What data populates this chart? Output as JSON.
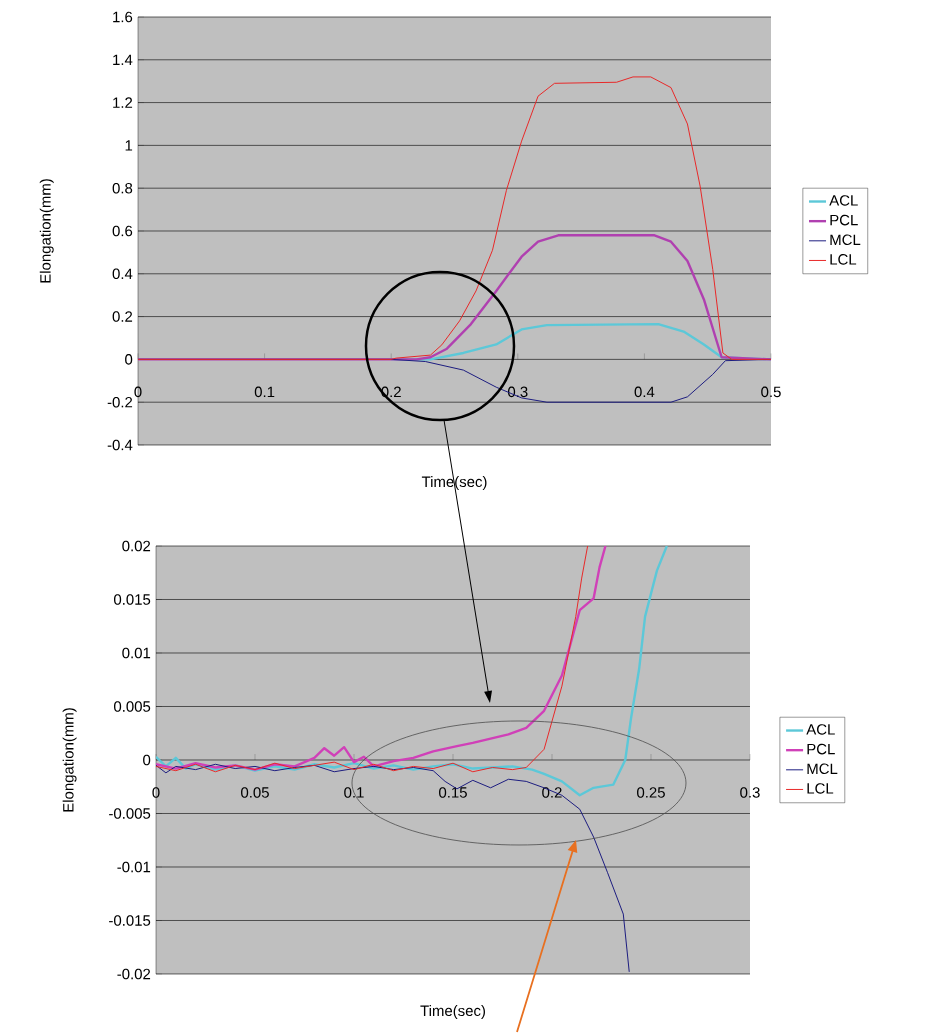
{
  "chart_data": [
    {
      "type": "line",
      "xlabel": "Time(sec)",
      "ylabel": "Elongation(mm)",
      "xlim": [
        0,
        0.5
      ],
      "ylim": [
        -0.4,
        1.6
      ],
      "xticks": [
        0,
        0.1,
        0.2,
        0.3,
        0.4,
        0.5
      ],
      "yticks": [
        -0.4,
        -0.2,
        0,
        0.2,
        0.4,
        0.6,
        0.8,
        1,
        1.2,
        1.4,
        1.6
      ],
      "grid": "y",
      "legend": "right",
      "marker": "none",
      "line_style": "solid",
      "series": [
        {
          "name": "ACL",
          "color": "#5cc8d8",
          "x": [
            0.2,
            0.231,
            0.257,
            0.283,
            0.303,
            0.323,
            0.411,
            0.431,
            0.447,
            0.461,
            0.5
          ],
          "values": [
            0,
            0,
            0.03,
            0.07,
            0.14,
            0.16,
            0.165,
            0.13,
            0.07,
            0.01,
            0
          ]
        },
        {
          "name": "PCL",
          "color": "#b040b0",
          "x": [
            0,
            0.1,
            0.2,
            0.22,
            0.231,
            0.244,
            0.263,
            0.283,
            0.303,
            0.316,
            0.332,
            0.408,
            0.421,
            0.434,
            0.447,
            0.461,
            0.5
          ],
          "values": [
            0,
            0,
            0,
            0,
            0.01,
            0.05,
            0.165,
            0.32,
            0.48,
            0.55,
            0.58,
            0.58,
            0.55,
            0.46,
            0.28,
            0.01,
            0
          ]
        },
        {
          "name": "MCL",
          "color": "#1c1c80",
          "x": [
            0,
            0.1,
            0.2,
            0.227,
            0.257,
            0.283,
            0.303,
            0.323,
            0.421,
            0.434,
            0.454,
            0.464,
            0.5
          ],
          "values": [
            0,
            0,
            0,
            -0.01,
            -0.05,
            -0.13,
            -0.18,
            -0.2,
            -0.2,
            -0.175,
            -0.07,
            -0.006,
            0
          ]
        },
        {
          "name": "LCL",
          "color": "#e82828",
          "x": [
            0,
            0.05,
            0.1,
            0.15,
            0.2,
            0.204,
            0.231,
            0.24,
            0.254,
            0.267,
            0.28,
            0.291,
            0.303,
            0.316,
            0.329,
            0.378,
            0.391,
            0.405,
            0.421,
            0.434,
            0.444,
            0.454,
            0.462,
            0.469,
            0.5
          ],
          "values": [
            0,
            0,
            0,
            0,
            0,
            0.006,
            0.02,
            0.068,
            0.18,
            0.32,
            0.51,
            0.79,
            1.02,
            1.23,
            1.29,
            1.295,
            1.32,
            1.32,
            1.27,
            1.1,
            0.81,
            0.42,
            0.03,
            0,
            0
          ]
        }
      ]
    },
    {
      "type": "line",
      "xlabel": "Time(sec)",
      "ylabel": "Elongation(mm)",
      "xlim": [
        0,
        0.3
      ],
      "ylim": [
        -0.02,
        0.02
      ],
      "xticks": [
        0,
        0.05,
        0.1,
        0.15,
        0.2,
        0.25,
        0.3
      ],
      "yticks": [
        -0.02,
        -0.015,
        -0.01,
        -0.005,
        0,
        0.005,
        0.01,
        0.015,
        0.02
      ],
      "grid": "y",
      "legend": "right",
      "marker": "none",
      "line_style": "solid",
      "series": [
        {
          "name": "ACL",
          "color": "#5cc8d8",
          "x": [
            0,
            0.005,
            0.01,
            0.015,
            0.02,
            0.03,
            0.04,
            0.05,
            0.06,
            0.07,
            0.08,
            0.09,
            0.1,
            0.11,
            0.12,
            0.13,
            0.14,
            0.15,
            0.16,
            0.17,
            0.18,
            0.19,
            0.196,
            0.205,
            0.214,
            0.221,
            0.231,
            0.237,
            0.24,
            0.244,
            0.247,
            0.253,
            0.258
          ],
          "values": [
            0.0003,
            -0.0006,
            0.0002,
            -0.0008,
            -0.0004,
            -0.0009,
            -0.0005,
            -0.001,
            -0.0006,
            -0.0009,
            -0.0004,
            -0.0007,
            -0.0003,
            -0.0008,
            -0.0005,
            -0.0009,
            -0.0006,
            -0.0004,
            -0.0008,
            -0.0007,
            -0.0006,
            -0.0009,
            -0.0013,
            -0.002,
            -0.0033,
            -0.0026,
            -0.0023,
            0,
            0.004,
            0.0085,
            0.0134,
            0.0177,
            0.02
          ]
        },
        {
          "name": "PCL",
          "color": "#d040b8",
          "x": [
            0,
            0.01,
            0.02,
            0.03,
            0.04,
            0.05,
            0.06,
            0.07,
            0.08,
            0.085,
            0.09,
            0.095,
            0.1,
            0.105,
            0.11,
            0.12,
            0.13,
            0.14,
            0.152,
            0.16,
            0.169,
            0.178,
            0.187,
            0.196,
            0.205,
            0.214,
            0.221,
            0.224,
            0.227
          ],
          "values": [
            -0.0004,
            -0.0008,
            -0.0003,
            -0.0007,
            -0.0005,
            -0.0009,
            -0.0004,
            -0.0006,
            0.0002,
            0.0011,
            0.0004,
            0.0012,
            -0.0002,
            0.0003,
            -0.0006,
            -0.0001,
            0.0002,
            0.0008,
            0.0013,
            0.0016,
            0.002,
            0.0024,
            0.003,
            0.0046,
            0.0079,
            0.014,
            0.0151,
            0.018,
            0.02
          ]
        },
        {
          "name": "MCL",
          "color": "#1c1c80",
          "x": [
            0,
            0.005,
            0.01,
            0.02,
            0.03,
            0.04,
            0.05,
            0.06,
            0.07,
            0.08,
            0.09,
            0.1,
            0.11,
            0.12,
            0.13,
            0.14,
            0.146,
            0.152,
            0.16,
            0.169,
            0.178,
            0.187,
            0.196,
            0.205,
            0.214,
            0.221,
            0.228,
            0.236,
            0.239
          ],
          "values": [
            -0.0005,
            -0.0012,
            -0.0006,
            -0.0009,
            -0.0004,
            -0.0008,
            -0.0006,
            -0.001,
            -0.0007,
            -0.0005,
            -0.0011,
            -0.0008,
            -0.0006,
            -0.0009,
            -0.0007,
            -0.001,
            -0.002,
            -0.0027,
            -0.0019,
            -0.0026,
            -0.0018,
            -0.002,
            -0.0026,
            -0.0033,
            -0.0046,
            -0.0072,
            -0.0105,
            -0.0144,
            -0.0198
          ]
        },
        {
          "name": "LCL",
          "color": "#e82828",
          "x": [
            0,
            0.01,
            0.02,
            0.03,
            0.04,
            0.05,
            0.06,
            0.07,
            0.08,
            0.09,
            0.1,
            0.11,
            0.12,
            0.13,
            0.14,
            0.15,
            0.16,
            0.17,
            0.18,
            0.187,
            0.196,
            0.205,
            0.212,
            0.215,
            0.218
          ],
          "values": [
            -0.0006,
            -0.001,
            -0.0004,
            -0.0011,
            -0.0005,
            -0.0009,
            -0.0003,
            -0.0008,
            -0.0005,
            -0.0002,
            -0.0009,
            -0.0004,
            -0.001,
            -0.0006,
            -0.0008,
            -0.0003,
            -0.0011,
            -0.0007,
            -0.0009,
            -0.0007,
            0.001,
            0.0069,
            0.0134,
            0.017,
            0.02
          ]
        }
      ]
    }
  ]
}
